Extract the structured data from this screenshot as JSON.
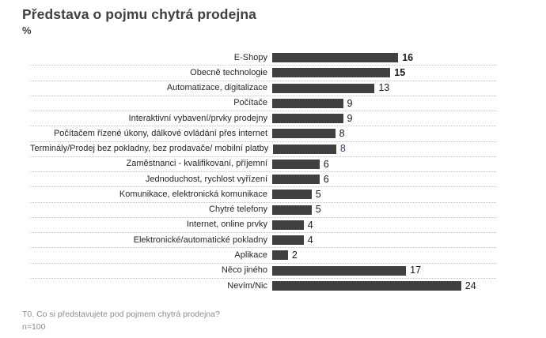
{
  "title": "Představa o pojmu chytrá prodejna",
  "subtitle": "%",
  "footer": {
    "question": "T0. Co si představujete pod pojmem chytrá prodejna?",
    "sample": "n=100"
  },
  "colors": {
    "bar": "#404040",
    "title_text": "#404040",
    "gridline": "#c3c3c3",
    "value_default": "#1a1a1a",
    "value_special": "#463a63",
    "footer_text": "#8c8c8c"
  },
  "chart_data": {
    "type": "bar",
    "orientation": "horizontal",
    "unit": "%",
    "title": "Představa o pojmu chytrá prodejna",
    "xlabel": "",
    "ylabel": "",
    "xlim": [
      0,
      28
    ],
    "grid": "dotted-row-separators",
    "legend": "none",
    "categories": [
      "E-Shopy",
      "Obecně technologie",
      "Automatizace, digitalizace",
      "Počítače",
      "Interaktivní vybavení/prvky prodejny",
      "Počítačem řízené úkony, dálkové ovládání přes internet",
      "Terminály/Prodej bez pokladny, bez prodavače/ mobilní platby",
      "Zaměstnanci - kvalifikovaní, příjemní",
      "Jednoduchost, rychlost vyřízení",
      "Komunikace, elektronická komunikace",
      "Chytré telefony",
      "Internet, online prvky",
      "Elektronické/automatické pokladny",
      "Aplikace",
      "Něco jiného",
      "Nevím/Nic"
    ],
    "values": [
      16,
      15,
      13,
      9,
      9,
      8,
      8,
      6,
      6,
      5,
      5,
      4,
      4,
      2,
      17,
      24
    ],
    "rows": [
      {
        "label": "E-Shopy",
        "value": 16,
        "emphasis": true
      },
      {
        "label": "Obecně technologie",
        "value": 15,
        "emphasis": true
      },
      {
        "label": "Automatizace, digitalizace",
        "value": 13,
        "emphasis": false
      },
      {
        "label": "Počítače",
        "value": 9,
        "emphasis": false
      },
      {
        "label": "Interaktivní vybavení/prvky prodejny",
        "value": 9,
        "emphasis": false
      },
      {
        "label": "Počítačem řízené úkony, dálkové ovládání přes internet",
        "value": 8,
        "emphasis": false
      },
      {
        "label": "Terminály/Prodej bez pokladny, bez prodavače/ mobilní platby",
        "value": 8,
        "emphasis": false,
        "value_color": "#463a63"
      },
      {
        "label": "Zaměstnanci - kvalifikovaní, příjemní",
        "value": 6,
        "emphasis": false
      },
      {
        "label": "Jednoduchost, rychlost vyřízení",
        "value": 6,
        "emphasis": false
      },
      {
        "label": "Komunikace, elektronická komunikace",
        "value": 5,
        "emphasis": false
      },
      {
        "label": "Chytré telefony",
        "value": 5,
        "emphasis": false
      },
      {
        "label": "Internet, online prvky",
        "value": 4,
        "emphasis": false
      },
      {
        "label": "Elektronické/automatické pokladny",
        "value": 4,
        "emphasis": false
      },
      {
        "label": "Aplikace",
        "value": 2,
        "emphasis": false
      },
      {
        "label": "Něco jiného",
        "value": 17,
        "emphasis": false
      },
      {
        "label": "Nevím/Nic",
        "value": 24,
        "emphasis": false
      }
    ]
  }
}
